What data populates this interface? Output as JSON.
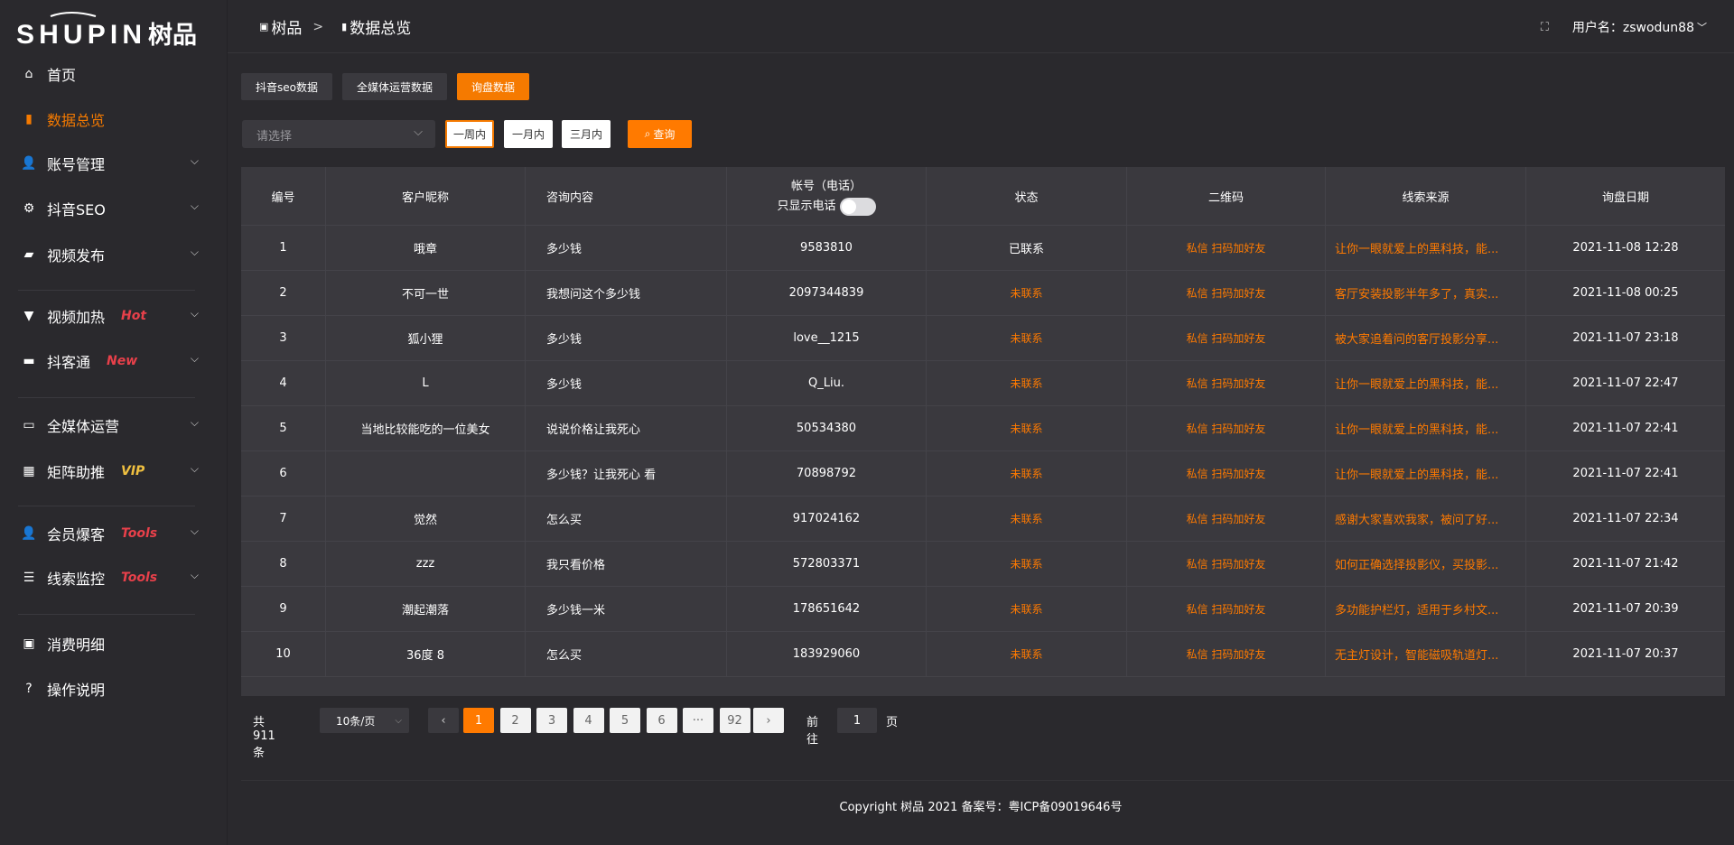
{
  "brand": {
    "logo_text": "SHUPIN 树品"
  },
  "sidebar": {
    "items": [
      {
        "label": "首页",
        "icon": "home-icon"
      },
      {
        "label": "数据总览",
        "icon": "bar-chart-icon",
        "active": true
      },
      {
        "label": "账号管理",
        "icon": "user-icon"
      },
      {
        "label": "抖音SEO",
        "icon": "gear-icon"
      },
      {
        "label": "视频发布",
        "icon": "video-camera-icon"
      },
      {
        "label": "视频加热",
        "icon": "brush-icon",
        "badge": "Hot"
      },
      {
        "label": "抖客通",
        "icon": "chat-icon",
        "badge": "New"
      },
      {
        "label": "全媒体运营",
        "icon": "monitor-icon"
      },
      {
        "label": "矩阵助推",
        "icon": "grid-icon",
        "badge": "VIP"
      },
      {
        "label": "会员爆客",
        "icon": "user-icon",
        "badge": "Tools"
      },
      {
        "label": "线索监控",
        "icon": "sliders-icon",
        "badge": "Tools"
      },
      {
        "label": "消费明细",
        "icon": "wallet-icon"
      },
      {
        "label": "操作说明",
        "icon": "help-icon"
      }
    ]
  },
  "header": {
    "breadcrumb": [
      "树品",
      ">",
      "数据总览"
    ],
    "username": "用户名：zswodun88"
  },
  "tabs": [
    "抖音seo数据",
    "全媒体运营数据",
    "询盘数据"
  ],
  "filters": {
    "select_placeholder": "请选择",
    "ranges": [
      "一周内",
      "一月内",
      "三月内"
    ],
    "query": "查询"
  },
  "table": {
    "headers": [
      "编号",
      "客户昵称",
      "咨询内容",
      "帐号（电话）",
      "状态",
      "二维码",
      "线索来源",
      "询盘日期"
    ],
    "phone_only_label": "只显示电话",
    "rows": [
      [
        "1",
        "哦章",
        "多少钱",
        "9583810",
        "已联系",
        "私信 扫码加好友",
        "让你一眼就爱上的黑科技，能...",
        "2021-11-08 12:28"
      ],
      [
        "2",
        "不可一世",
        "我想问这个多少钱",
        "2097344839",
        "未联系",
        "私信 扫码加好友",
        "客厅安装投影半年多了，真实...",
        "2021-11-08 00:25"
      ],
      [
        "3",
        "狐小狸",
        "多少钱",
        "love__1215",
        "未联系",
        "私信 扫码加好友",
        "被大家追着问的客厅投影分享...",
        "2021-11-07 23:18"
      ],
      [
        "4",
        "L",
        "多少钱",
        "Q_Liu.",
        "未联系",
        "私信 扫码加好友",
        "让你一眼就爱上的黑科技，能...",
        "2021-11-07 22:47"
      ],
      [
        "5",
        "当地比较能吃的一位美女",
        "说说价格让我死心",
        "50534380",
        "未联系",
        "私信 扫码加好友",
        "让你一眼就爱上的黑科技，能...",
        "2021-11-07 22:41"
      ],
      [
        "6",
        "",
        "多少钱？让我死心 看",
        "70898792",
        "未联系",
        "私信 扫码加好友",
        "让你一眼就爱上的黑科技，能...",
        "2021-11-07 22:41"
      ],
      [
        "7",
        "觉然",
        "怎么买",
        "917024162",
        "未联系",
        "私信 扫码加好友",
        "感谢大家喜欢我家，被问了好...",
        "2021-11-07 22:34"
      ],
      [
        "8",
        "zzz",
        "我只看价格",
        "572803371",
        "未联系",
        "私信 扫码加好友",
        "如何正确选择投影仪，买投影...",
        "2021-11-07 21:42"
      ],
      [
        "9",
        "潮起潮落",
        "多少钱一米",
        "178651642",
        "未联系",
        "私信 扫码加好友",
        "多功能护栏灯，适用于乡村文...",
        "2021-11-07 20:39"
      ],
      [
        "10",
        "36度 8",
        "怎么买",
        "183929060",
        "未联系",
        "私信 扫码加好友",
        "无主灯设计，智能磁吸轨道灯...",
        "2021-11-07 20:37"
      ]
    ]
  },
  "pagination": {
    "total": "共 911 条",
    "page_size": "10条/页",
    "pages": [
      "1",
      "2",
      "3",
      "4",
      "5",
      "6",
      "···",
      "92"
    ],
    "current": "1",
    "goto_label": "前往",
    "goto_value": "1",
    "goto_suffix": "页"
  },
  "footer": "Copyright 树品 2021 备案号：粤ICP备09019646号",
  "colors": {
    "accent": "#ff7a00",
    "hot": "#e8404a",
    "vip": "#f0c040"
  }
}
